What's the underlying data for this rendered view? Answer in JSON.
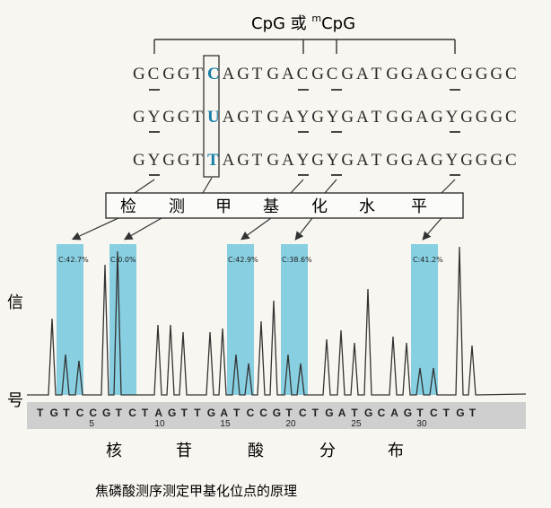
{
  "header": {
    "title": "CpG 或 mCpG",
    "title_pre": "CpG 或 ",
    "title_sup": "m",
    "title_post": "CpG"
  },
  "sequences": [
    {
      "text": "GCGGTCAGTGACGCGATGGAGCGGGC",
      "highlight_index": 5
    },
    {
      "text": "GYGGTUAGTGAYGYGATGGAGYGGGC",
      "highlight_index": 5
    },
    {
      "text": "GYGGTTAGTGAYGYGATGGAGYGGGC",
      "highlight_index": 5
    }
  ],
  "detect_box": {
    "label": "检 测 甲 基 化 水 平",
    "chars": [
      "检",
      "测",
      "甲",
      "基",
      "化",
      "水",
      "平"
    ]
  },
  "peaks_labels": [
    {
      "label": "C:42.7%"
    },
    {
      "label": "C:0.0%"
    },
    {
      "label": "C:42.9%"
    },
    {
      "label": "C:38.6%"
    },
    {
      "label": "C:41.2%"
    }
  ],
  "y_axis": {
    "top": "信",
    "bottom": "号"
  },
  "bases_track": {
    "bases": "TGTCCGTCTAGTTGATCCGTCTGATGCAGTCTGT",
    "numbers": [
      "5",
      "10",
      "15",
      "20",
      "25",
      "30"
    ]
  },
  "x_axis_label": {
    "chars": [
      "核",
      "苷",
      "酸",
      "分",
      "布"
    ]
  },
  "caption": "焦磷酸测序测定甲基化位点的原理",
  "colors": {
    "highlight_band": "#62c3dd",
    "accent_text": "#1a7fa6",
    "base_strip": "#cfcfcf"
  }
}
